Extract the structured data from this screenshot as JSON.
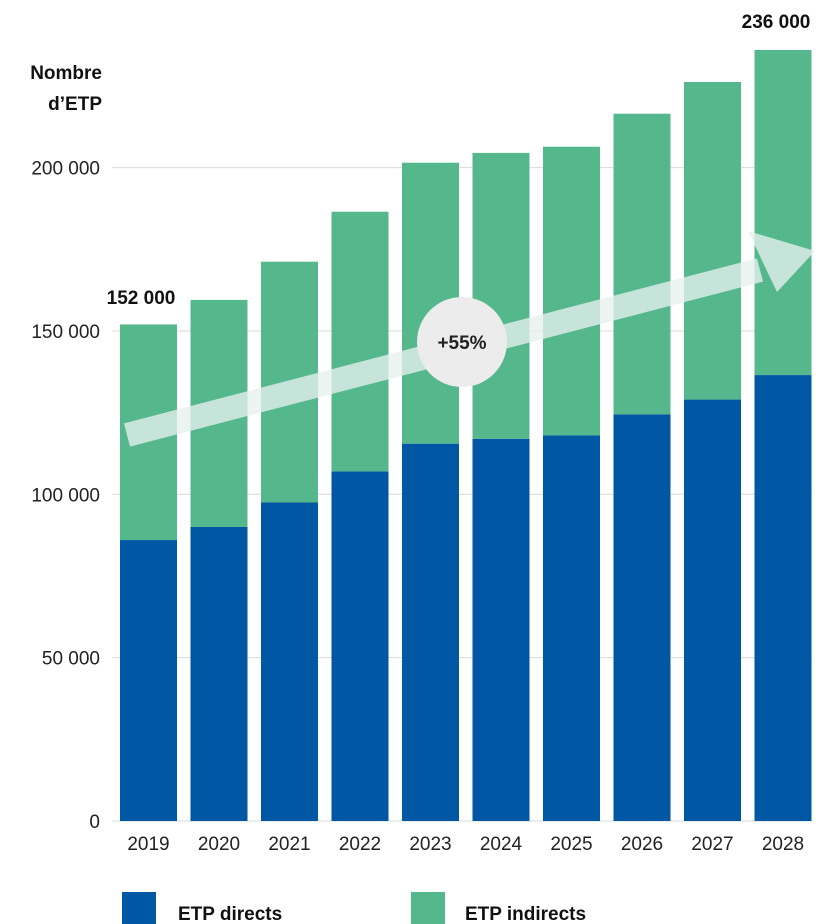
{
  "chart_data": {
    "type": "bar",
    "stacked": true,
    "ylabel": [
      "Nombre",
      "d’ETP"
    ],
    "categories": [
      "2019",
      "2020",
      "2021",
      "2022",
      "2023",
      "2024",
      "2025",
      "2026",
      "2027",
      "2028"
    ],
    "series": [
      {
        "name": "ETP directs",
        "color": "#0057a3",
        "values": [
          86000,
          90000,
          97500,
          107000,
          115500,
          117000,
          118000,
          124500,
          129000,
          136500
        ]
      },
      {
        "name": "ETP indirects",
        "color": "#55b88c",
        "values": [
          66000,
          69500,
          73700,
          79500,
          86000,
          87500,
          88400,
          92000,
          97200,
          99500
        ]
      }
    ],
    "ylim": [
      0,
      236000
    ],
    "yticks": [
      0,
      50000,
      100000,
      150000,
      200000
    ],
    "ytick_labels": [
      "0",
      "50 000",
      "100 000",
      "150 000",
      "200 000"
    ],
    "grid": true,
    "annotations": {
      "first_total": "152 000",
      "last_total": "236 000",
      "growth_badge": "+55%"
    },
    "legend_position": "bottom"
  }
}
